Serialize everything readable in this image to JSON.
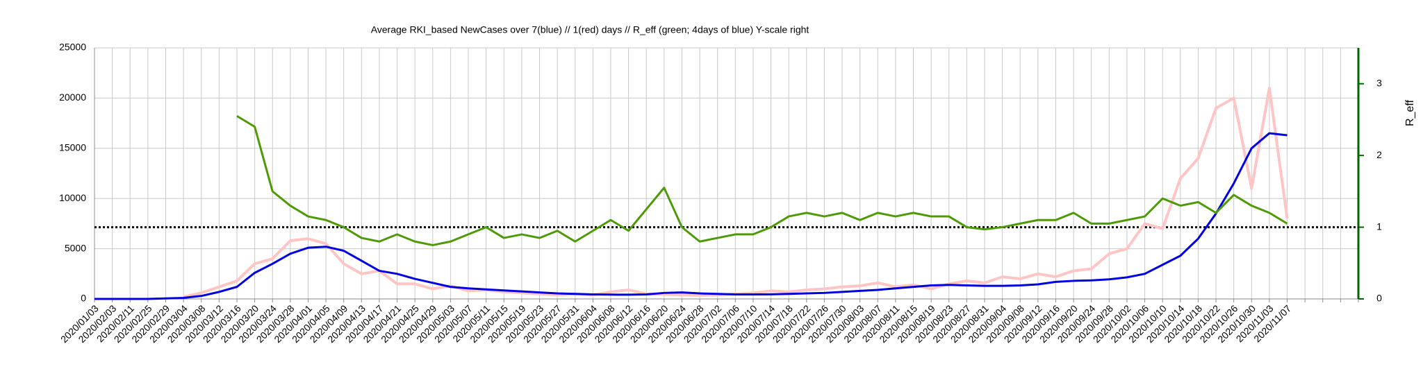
{
  "chart_data": {
    "type": "line",
    "title": "Average RKI_based NewCases over 7(blue) // 1(red) days //  R_eff (green; 4days of blue) Y-scale right",
    "y2_label": "R_eff",
    "categories": [
      "2020/01/03",
      "2020/02/03",
      "2020/02/11",
      "2020/02/25",
      "2020/02/29",
      "2020/03/04",
      "2020/03/08",
      "2020/03/12",
      "2020/03/16",
      "2020/03/20",
      "2020/03/24",
      "2020/03/28",
      "2020/04/01",
      "2020/04/05",
      "2020/04/09",
      "2020/04/13",
      "2020/04/17",
      "2020/04/21",
      "2020/04/25",
      "2020/04/29",
      "2020/05/03",
      "2020/05/07",
      "2020/05/11",
      "2020/05/15",
      "2020/05/19",
      "2020/05/23",
      "2020/05/27",
      "2020/05/31",
      "2020/06/04",
      "2020/06/08",
      "2020/06/12",
      "2020/06/16",
      "2020/06/20",
      "2020/06/24",
      "2020/06/28",
      "2020/07/02",
      "2020/07/06",
      "2020/07/10",
      "2020/07/14",
      "2020/07/18",
      "2020/07/22",
      "2020/07/26",
      "2020/07/30",
      "2020/08/03",
      "2020/08/07",
      "2020/08/11",
      "2020/08/15",
      "2020/08/19",
      "2020/08/23",
      "2020/08/27",
      "2020/08/31",
      "2020/09/04",
      "2020/09/08",
      "2020/09/12",
      "2020/09/16",
      "2020/09/20",
      "2020/09/24",
      "2020/09/28",
      "2020/10/02",
      "2020/10/06",
      "2020/10/10",
      "2020/10/14",
      "2020/10/18",
      "2020/10/22",
      "2020/10/26",
      "2020/10/30",
      "2020/11/03",
      "2020/11/07",
      null,
      null,
      null,
      null
    ],
    "series": [
      {
        "name": "1 day (red)",
        "color": "#ffc4c4",
        "axis": "y",
        "width": 4,
        "values": [
          null,
          null,
          null,
          null,
          null,
          200,
          600,
          1200,
          1800,
          3500,
          4000,
          5800,
          6000,
          5500,
          3500,
          2500,
          2800,
          1500,
          1500,
          1000,
          1300,
          800,
          900,
          700,
          600,
          500,
          400,
          500,
          400,
          700,
          900,
          500,
          450,
          400,
          350,
          400,
          500,
          600,
          800,
          700,
          900,
          1000,
          1200,
          1300,
          1600,
          1200,
          1400,
          1000,
          1500,
          1800,
          1600,
          2200,
          2000,
          2500,
          2200,
          2800,
          3000,
          4500,
          5000,
          7500,
          7000,
          12000,
          14000,
          19000,
          20000,
          11000,
          21000,
          8000,
          null,
          null,
          null,
          null
        ]
      },
      {
        "name": "7 days (blue)",
        "color": "#0000e0",
        "axis": "y",
        "width": 3,
        "values": [
          0,
          0,
          0,
          0,
          50,
          100,
          300,
          700,
          1200,
          2600,
          3500,
          4500,
          5100,
          5200,
          4800,
          3800,
          2800,
          2500,
          2000,
          1600,
          1200,
          1050,
          950,
          850,
          750,
          650,
          550,
          500,
          450,
          430,
          420,
          450,
          600,
          650,
          550,
          500,
          450,
          450,
          460,
          500,
          550,
          600,
          700,
          800,
          900,
          1050,
          1200,
          1350,
          1400,
          1350,
          1300,
          1300,
          1350,
          1450,
          1700,
          1800,
          1850,
          1950,
          2150,
          2500,
          3400,
          4300,
          6000,
          8500,
          11500,
          15000,
          16500,
          16300,
          null,
          null,
          null,
          null
        ]
      },
      {
        "name": "R_eff (green)",
        "color": "#4e9a06",
        "axis": "y2",
        "width": 3,
        "values": [
          null,
          null,
          null,
          null,
          null,
          null,
          null,
          null,
          2.55,
          2.4,
          1.5,
          1.3,
          1.15,
          1.1,
          1.0,
          0.85,
          0.8,
          0.9,
          0.8,
          0.75,
          0.8,
          0.9,
          1.0,
          0.85,
          0.9,
          0.85,
          0.95,
          0.8,
          0.95,
          1.1,
          0.95,
          1.25,
          1.55,
          1.0,
          0.8,
          0.85,
          0.9,
          0.9,
          1.0,
          1.15,
          1.2,
          1.15,
          1.2,
          1.1,
          1.2,
          1.15,
          1.2,
          1.15,
          1.15,
          1.0,
          0.97,
          1.0,
          1.05,
          1.1,
          1.1,
          1.2,
          1.05,
          1.05,
          1.1,
          1.15,
          1.4,
          1.3,
          1.35,
          1.2,
          1.45,
          1.3,
          1.2,
          1.05,
          null,
          null,
          null,
          null
        ]
      }
    ],
    "reference_y2": 1,
    "ylim": [
      0,
      25000
    ],
    "yticks": [
      0,
      5000,
      10000,
      15000,
      20000,
      25000
    ],
    "y2lim": [
      0,
      3.5
    ],
    "y2ticks": [
      0,
      1,
      2,
      3
    ],
    "grid": true,
    "y2_axis_color": "#006400"
  }
}
